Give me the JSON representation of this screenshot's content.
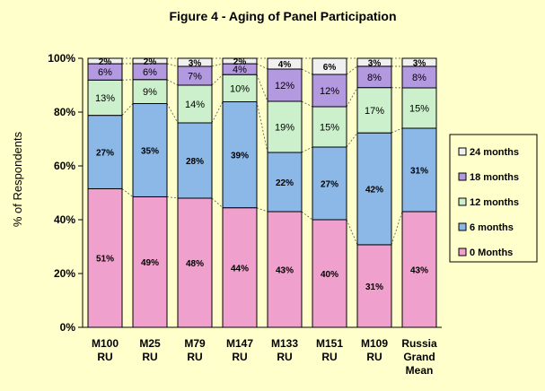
{
  "chart_data": {
    "type": "bar",
    "stacked": true,
    "title": "Figure 4 - Aging of Panel Participation",
    "ylabel": "% of Respondents",
    "xlabel": "",
    "ylim": [
      0,
      100
    ],
    "yticks": [
      "0%",
      "20%",
      "40%",
      "60%",
      "80%",
      "100%"
    ],
    "categories": [
      [
        "M100",
        "RU"
      ],
      [
        "M25",
        "RU"
      ],
      [
        "M79",
        "RU"
      ],
      [
        "M147",
        "RU"
      ],
      [
        "M133",
        "RU"
      ],
      [
        "M151",
        "RU"
      ],
      [
        "M109",
        "RU"
      ],
      [
        "Russia",
        "Grand",
        "Mean"
      ]
    ],
    "series": [
      {
        "name": "0 Months",
        "color": "#f0a0cc",
        "values": [
          51,
          49,
          48,
          44,
          43,
          40,
          31,
          43
        ],
        "labels": [
          "51%",
          "49%",
          "48%",
          "44%",
          "43%",
          "40%",
          "31%",
          "43%"
        ]
      },
      {
        "name": "6 months",
        "color": "#8cb8e8",
        "values": [
          27,
          35,
          28,
          39,
          22,
          27,
          42,
          31
        ],
        "labels": [
          "27%",
          "35%",
          "28%",
          "39%",
          "22%",
          "27%",
          "42%",
          "31%"
        ]
      },
      {
        "name": "12 months",
        "color": "#ccf0cc",
        "values": [
          13,
          9,
          14,
          10,
          19,
          15,
          17,
          15
        ],
        "labels": [
          "13%",
          "9%",
          "14%",
          "10%",
          "19%",
          "15%",
          "17%",
          "15%"
        ]
      },
      {
        "name": "18 months",
        "color": "#b399e0",
        "values": [
          6,
          6,
          7,
          4,
          12,
          12,
          8,
          8
        ],
        "labels": [
          "6%",
          "6%",
          "7%",
          "4%",
          "12%",
          "12%",
          "8%",
          "8%"
        ]
      },
      {
        "name": "24 months",
        "color": "#f0f0f0",
        "values": [
          2,
          2,
          3,
          2,
          4,
          6,
          3,
          3
        ],
        "labels": [
          "2%",
          "2%",
          "3%",
          "2%",
          "4%",
          "6%",
          "3%",
          "3%"
        ]
      }
    ],
    "legend_position": "right",
    "legend_order": [
      "24 months",
      "18 months",
      "12 months",
      "6 months",
      "0 Months"
    ],
    "series_lines": true,
    "grid": false
  }
}
